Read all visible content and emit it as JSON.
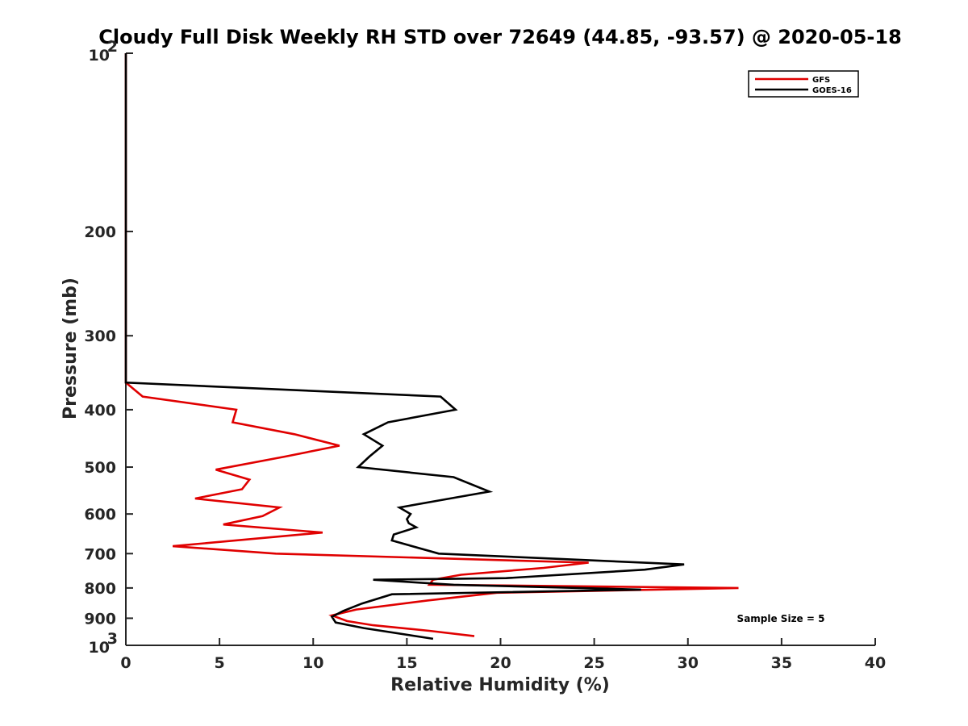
{
  "chart_data": {
    "type": "line",
    "title": "Cloudy Full Disk Weekly RH STD over 72649 (44.85, -93.57) @ 2020-05-18",
    "xlabel": "Relative Humidity (%)",
    "ylabel": "Pressure (mb)",
    "xlim": [
      0,
      40
    ],
    "ylim": [
      100,
      1000
    ],
    "yscale": "log",
    "yreversed": true,
    "xticks": [
      0,
      5,
      10,
      15,
      20,
      25,
      30,
      35,
      40
    ],
    "xtick_labels": [
      "0",
      "5",
      "10",
      "15",
      "20",
      "25",
      "30",
      "35",
      "40"
    ],
    "yticks": [
      {
        "value": 100,
        "base": "10",
        "exp": "2"
      },
      {
        "value": 200,
        "label": "200"
      },
      {
        "value": 300,
        "label": "300"
      },
      {
        "value": 400,
        "label": "400"
      },
      {
        "value": 500,
        "label": "500"
      },
      {
        "value": 600,
        "label": "600"
      },
      {
        "value": 700,
        "label": "700"
      },
      {
        "value": 800,
        "label": "800"
      },
      {
        "value": 900,
        "label": "900"
      },
      {
        "value": 1000,
        "base": "10",
        "exp": "3"
      }
    ],
    "grid": false,
    "legend_position": "top-right",
    "annotation": "Sample Size = 5",
    "series": [
      {
        "name": "GFS",
        "color": "#e00000",
        "points": [
          {
            "x": 0,
            "y": 100
          },
          {
            "x": 0,
            "y": 360
          },
          {
            "x": 0.9,
            "y": 380
          },
          {
            "x": 5.9,
            "y": 400
          },
          {
            "x": 5.7,
            "y": 420
          },
          {
            "x": 9.0,
            "y": 440
          },
          {
            "x": 11.4,
            "y": 460
          },
          {
            "x": 8.5,
            "y": 480
          },
          {
            "x": 4.8,
            "y": 505
          },
          {
            "x": 6.6,
            "y": 525
          },
          {
            "x": 6.2,
            "y": 545
          },
          {
            "x": 3.7,
            "y": 565
          },
          {
            "x": 8.2,
            "y": 585
          },
          {
            "x": 7.3,
            "y": 605
          },
          {
            "x": 5.2,
            "y": 625
          },
          {
            "x": 10.5,
            "y": 645
          },
          {
            "x": 2.5,
            "y": 680
          },
          {
            "x": 8.0,
            "y": 700
          },
          {
            "x": 24.7,
            "y": 725
          },
          {
            "x": 22.3,
            "y": 740
          },
          {
            "x": 17.9,
            "y": 760
          },
          {
            "x": 16.4,
            "y": 775
          },
          {
            "x": 16.2,
            "y": 790
          },
          {
            "x": 32.7,
            "y": 800
          },
          {
            "x": 19.8,
            "y": 815
          },
          {
            "x": 16.1,
            "y": 840
          },
          {
            "x": 12.3,
            "y": 870
          },
          {
            "x": 11.0,
            "y": 890
          },
          {
            "x": 11.8,
            "y": 910
          },
          {
            "x": 13.2,
            "y": 925
          },
          {
            "x": 16.2,
            "y": 945
          },
          {
            "x": 18.6,
            "y": 965
          }
        ]
      },
      {
        "name": "GOES-16",
        "color": "#000000",
        "points": [
          {
            "x": 0,
            "y": 100
          },
          {
            "x": 0,
            "y": 360
          },
          {
            "x": 16.8,
            "y": 380
          },
          {
            "x": 17.6,
            "y": 400
          },
          {
            "x": 14.0,
            "y": 420
          },
          {
            "x": 12.7,
            "y": 440
          },
          {
            "x": 13.7,
            "y": 460
          },
          {
            "x": 13.0,
            "y": 480
          },
          {
            "x": 12.4,
            "y": 500
          },
          {
            "x": 17.5,
            "y": 520
          },
          {
            "x": 19.4,
            "y": 550
          },
          {
            "x": 17.3,
            "y": 565
          },
          {
            "x": 14.6,
            "y": 585
          },
          {
            "x": 15.2,
            "y": 600
          },
          {
            "x": 15.0,
            "y": 612
          },
          {
            "x": 15.1,
            "y": 622
          },
          {
            "x": 15.5,
            "y": 632
          },
          {
            "x": 14.3,
            "y": 650
          },
          {
            "x": 14.2,
            "y": 665
          },
          {
            "x": 16.7,
            "y": 700
          },
          {
            "x": 29.8,
            "y": 730
          },
          {
            "x": 27.7,
            "y": 745
          },
          {
            "x": 20.3,
            "y": 770
          },
          {
            "x": 13.2,
            "y": 775
          },
          {
            "x": 17.5,
            "y": 790
          },
          {
            "x": 27.5,
            "y": 805
          },
          {
            "x": 14.2,
            "y": 820
          },
          {
            "x": 12.6,
            "y": 850
          },
          {
            "x": 11.6,
            "y": 875
          },
          {
            "x": 11.0,
            "y": 895
          },
          {
            "x": 11.2,
            "y": 915
          },
          {
            "x": 12.7,
            "y": 935
          },
          {
            "x": 16.4,
            "y": 975
          }
        ]
      }
    ]
  }
}
